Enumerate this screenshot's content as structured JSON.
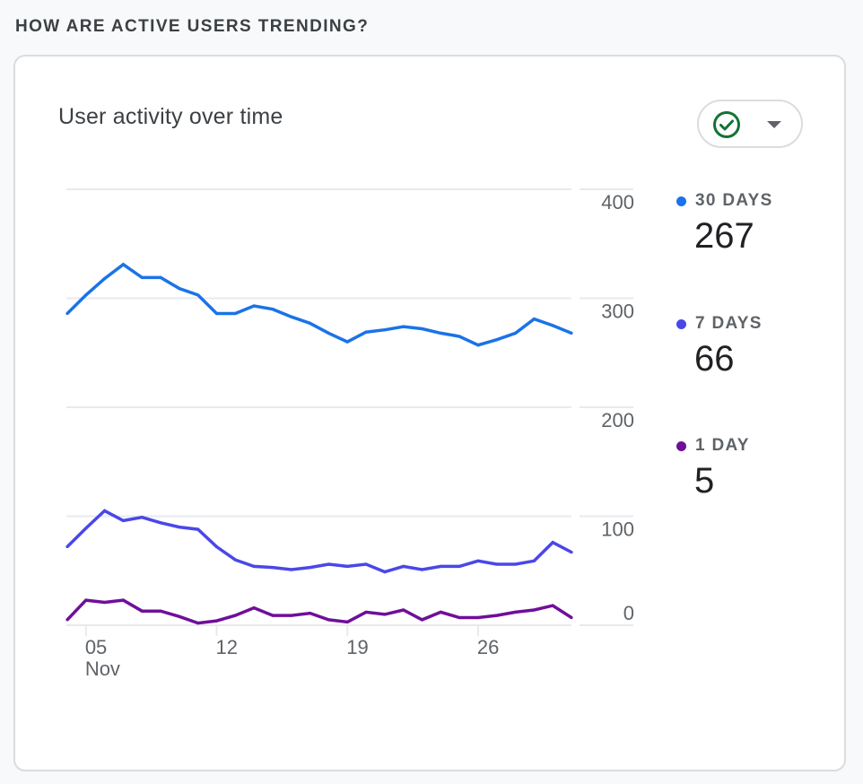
{
  "section": {
    "title": "HOW ARE ACTIVE USERS TRENDING?"
  },
  "card": {
    "title": "User activity over time",
    "filter_button": {
      "icon": "check-circle-icon",
      "caret_icon": "caret-down-icon",
      "icon_color": "#137333"
    }
  },
  "legend": [
    {
      "label": "30 DAYS",
      "value": "267",
      "color": "#1a73e8"
    },
    {
      "label": "7 DAYS",
      "value": "66",
      "color": "#4a47e8"
    },
    {
      "label": "1 DAY",
      "value": "5",
      "color": "#6f0f9a"
    }
  ],
  "chart_data": {
    "type": "line",
    "title": "User activity over time",
    "xlabel": "",
    "ylabel": "",
    "ylim": [
      0,
      400
    ],
    "yticks": [
      "0",
      "100",
      "200",
      "300",
      "400"
    ],
    "xticks": [
      {
        "day": 5,
        "label": "05",
        "sublabel": "Nov"
      },
      {
        "day": 12,
        "label": "12",
        "sublabel": ""
      },
      {
        "day": 19,
        "label": "19",
        "sublabel": ""
      },
      {
        "day": 26,
        "label": "26",
        "sublabel": ""
      }
    ],
    "x_days_from_nov": [
      4,
      5,
      6,
      7,
      8,
      9,
      10,
      11,
      12,
      13,
      14,
      15,
      16,
      17,
      18,
      19,
      20,
      21,
      22,
      23,
      24,
      25,
      26,
      27,
      28,
      29,
      30,
      31
    ],
    "grid": true,
    "legend_position": "right",
    "series": [
      {
        "name": "30 DAYS",
        "color": "#1a73e8",
        "values": [
          286,
          303,
          318,
          331,
          319,
          319,
          309,
          303,
          286,
          286,
          293,
          290,
          283,
          277,
          268,
          260,
          269,
          271,
          274,
          272,
          268,
          265,
          257,
          262,
          268,
          281,
          275,
          268
        ]
      },
      {
        "name": "7 DAYS",
        "color": "#4a47e8",
        "values": [
          72,
          89,
          105,
          96,
          99,
          94,
          90,
          88,
          72,
          60,
          54,
          53,
          51,
          53,
          56,
          54,
          56,
          49,
          54,
          51,
          54,
          54,
          59,
          56,
          56,
          59,
          76,
          67
        ]
      },
      {
        "name": "1 DAY",
        "color": "#6f0f9a",
        "values": [
          5,
          23,
          21,
          23,
          13,
          13,
          8,
          2,
          4,
          9,
          16,
          9,
          9,
          11,
          5,
          3,
          12,
          10,
          14,
          5,
          12,
          7,
          7,
          9,
          12,
          14,
          18,
          7
        ]
      }
    ]
  }
}
